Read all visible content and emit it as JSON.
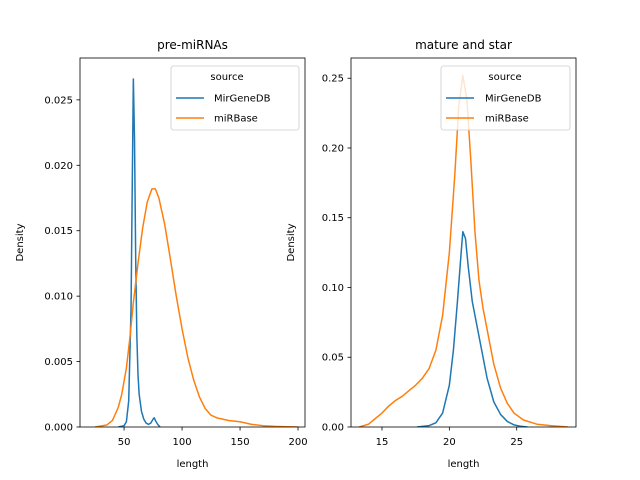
{
  "chart_data": [
    {
      "type": "line",
      "title": "pre-miRNAs",
      "xlabel": "length",
      "ylabel": "Density",
      "xlim": [
        12,
        206
      ],
      "ylim": [
        0,
        0.0282
      ],
      "xticks": [
        50,
        100,
        150,
        200
      ],
      "xtick_labels": [
        "50",
        "100",
        "150",
        "200"
      ],
      "yticks": [
        0,
        0.005,
        0.01,
        0.015,
        0.02,
        0.025
      ],
      "ytick_labels": [
        "0.000",
        "0.005",
        "0.010",
        "0.015",
        "0.020",
        "0.025"
      ],
      "grid": false,
      "legend": {
        "title": "source",
        "placement": "top-right"
      },
      "series": [
        {
          "name": "MirGeneDB",
          "color": "#1f77b4",
          "x": [
            45,
            50,
            52,
            54,
            56,
            57,
            58,
            59,
            60,
            61,
            62,
            63,
            65,
            67,
            69,
            71,
            73,
            75,
            76,
            77,
            79,
            81
          ],
          "y": [
            0,
            0.0001,
            0.0004,
            0.002,
            0.009,
            0.018,
            0.0266,
            0.022,
            0.013,
            0.007,
            0.004,
            0.0025,
            0.0012,
            0.0006,
            0.0003,
            0.0002,
            0.0003,
            0.0006,
            0.0007,
            0.0005,
            0.0002,
            0
          ]
        },
        {
          "name": "miRBase",
          "color": "#ff7f0e",
          "x": [
            25,
            35,
            40,
            45,
            48,
            52,
            55,
            58,
            62,
            66,
            70,
            74,
            77,
            80,
            85,
            90,
            95,
            100,
            105,
            110,
            115,
            120,
            125,
            130,
            135,
            140,
            145,
            150,
            160,
            170,
            180,
            190,
            200
          ],
          "y": [
            0,
            0.00015,
            0.0005,
            0.0015,
            0.0025,
            0.0045,
            0.0068,
            0.0095,
            0.0125,
            0.0152,
            0.0172,
            0.0182,
            0.0182,
            0.0175,
            0.0155,
            0.0128,
            0.01,
            0.0075,
            0.0053,
            0.0036,
            0.0023,
            0.0014,
            0.0009,
            0.0007,
            0.0006,
            0.0005,
            0.00045,
            0.0004,
            0.0002,
            0.0001,
            5e-05,
            2e-05,
            0
          ]
        }
      ]
    },
    {
      "type": "line",
      "title": "mature and star",
      "xlabel": "length",
      "ylabel": "Density",
      "xlim": [
        12.7,
        29.4
      ],
      "ylim": [
        0,
        0.2645
      ],
      "xticks": [
        15,
        20,
        25
      ],
      "xtick_labels": [
        "15",
        "20",
        "25"
      ],
      "yticks": [
        0,
        0.05,
        0.1,
        0.15,
        0.2,
        0.25
      ],
      "ytick_labels": [
        "0.00",
        "0.05",
        "0.10",
        "0.15",
        "0.20",
        "0.25"
      ],
      "grid": false,
      "legend": {
        "title": "source",
        "placement": "top-right"
      },
      "series": [
        {
          "name": "MirGeneDB",
          "color": "#1f77b4",
          "x": [
            17.6,
            18.5,
            19.0,
            19.5,
            20.0,
            20.3,
            20.6,
            20.9,
            21.0,
            21.2,
            21.4,
            21.7,
            22.0,
            22.4,
            22.8,
            23.3,
            23.8,
            24.3,
            24.8,
            25.3,
            25.8
          ],
          "y": [
            0,
            0.001,
            0.003,
            0.01,
            0.03,
            0.055,
            0.09,
            0.128,
            0.14,
            0.135,
            0.115,
            0.09,
            0.075,
            0.055,
            0.035,
            0.018,
            0.009,
            0.004,
            0.0015,
            0.0005,
            0
          ]
        },
        {
          "name": "miRBase",
          "color": "#ff7f0e",
          "x": [
            13.3,
            14.0,
            14.5,
            15.0,
            15.5,
            16.0,
            16.5,
            17.0,
            17.5,
            18.0,
            18.5,
            19.0,
            19.5,
            20.0,
            20.4,
            20.7,
            21.0,
            21.3,
            21.6,
            21.9,
            22.2,
            22.5,
            22.9,
            23.3,
            23.8,
            24.3,
            24.8,
            25.5,
            26.5,
            27.5,
            28.8
          ],
          "y": [
            0,
            0.002,
            0.006,
            0.01,
            0.015,
            0.019,
            0.022,
            0.026,
            0.03,
            0.035,
            0.042,
            0.055,
            0.08,
            0.125,
            0.18,
            0.23,
            0.252,
            0.235,
            0.19,
            0.14,
            0.105,
            0.085,
            0.065,
            0.045,
            0.028,
            0.017,
            0.01,
            0.005,
            0.002,
            0.001,
            0
          ]
        }
      ]
    }
  ]
}
